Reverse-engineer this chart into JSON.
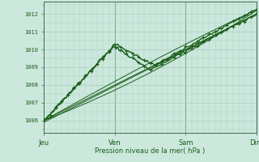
{
  "xlabel": "Pression niveau de la mer( hPa )",
  "x_ticks_labels": [
    "Jeu",
    "Ven",
    "Sam",
    "Dim"
  ],
  "x_ticks_pos": [
    0,
    48,
    96,
    144
  ],
  "ylim": [
    1005.3,
    1012.7
  ],
  "y_ticks": [
    1006,
    1007,
    1008,
    1009,
    1010,
    1011,
    1012
  ],
  "xlim": [
    0,
    144
  ],
  "bg_color": "#cce8dd",
  "grid_color": "#aacfbf",
  "line_color": "#1a5e1a",
  "line_color2": "#2e7d2e"
}
